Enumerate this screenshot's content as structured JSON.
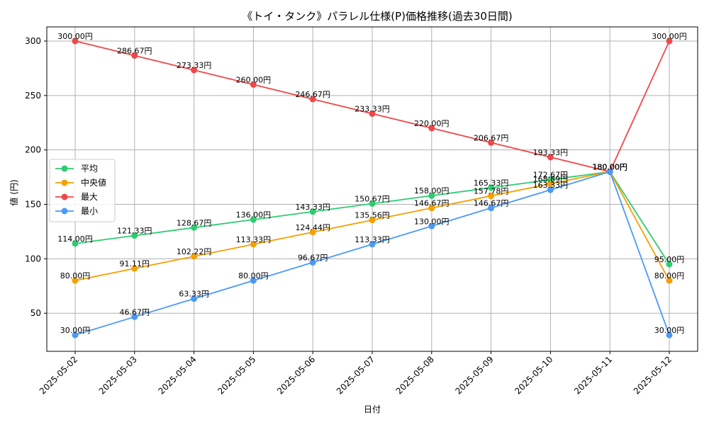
{
  "chart_data": {
    "type": "line",
    "title": "《トイ・タンク》パラレル仕様(P)価格推移(過去30日間)",
    "xlabel": "日付",
    "ylabel": "値 (円)",
    "categories": [
      "2025-05-02",
      "2025-05-03",
      "2025-05-04",
      "2025-05-05",
      "2025-05-06",
      "2025-05-07",
      "2025-05-08",
      "2025-05-09",
      "2025-05-10",
      "2025-05-11",
      "2025-05-12"
    ],
    "ylim": [
      15,
      313
    ],
    "yticks": [
      50,
      100,
      150,
      200,
      250,
      300
    ],
    "grid": true,
    "legend_position": "center-left",
    "value_suffix": "円",
    "series": [
      {
        "name": "平均",
        "color": "#2ecc71",
        "values": [
          114.0,
          121.33,
          128.67,
          136.0,
          143.33,
          150.67,
          158.0,
          165.33,
          172.67,
          180.0,
          95.0
        ]
      },
      {
        "name": "中央値",
        "color": "#f5a000",
        "values": [
          80.0,
          91.11,
          102.22,
          113.33,
          124.44,
          135.56,
          146.67,
          157.78,
          168.89,
          180.0,
          80.0
        ]
      },
      {
        "name": "最大",
        "color": "#f04848",
        "values": [
          300.0,
          286.67,
          273.33,
          260.0,
          246.67,
          233.33,
          220.0,
          206.67,
          193.33,
          180.0,
          300.0
        ]
      },
      {
        "name": "最小",
        "color": "#4a9af5",
        "values": [
          30.0,
          46.67,
          63.33,
          80.0,
          96.67,
          113.33,
          130.0,
          146.67,
          163.33,
          180.0,
          30.0
        ]
      }
    ]
  }
}
